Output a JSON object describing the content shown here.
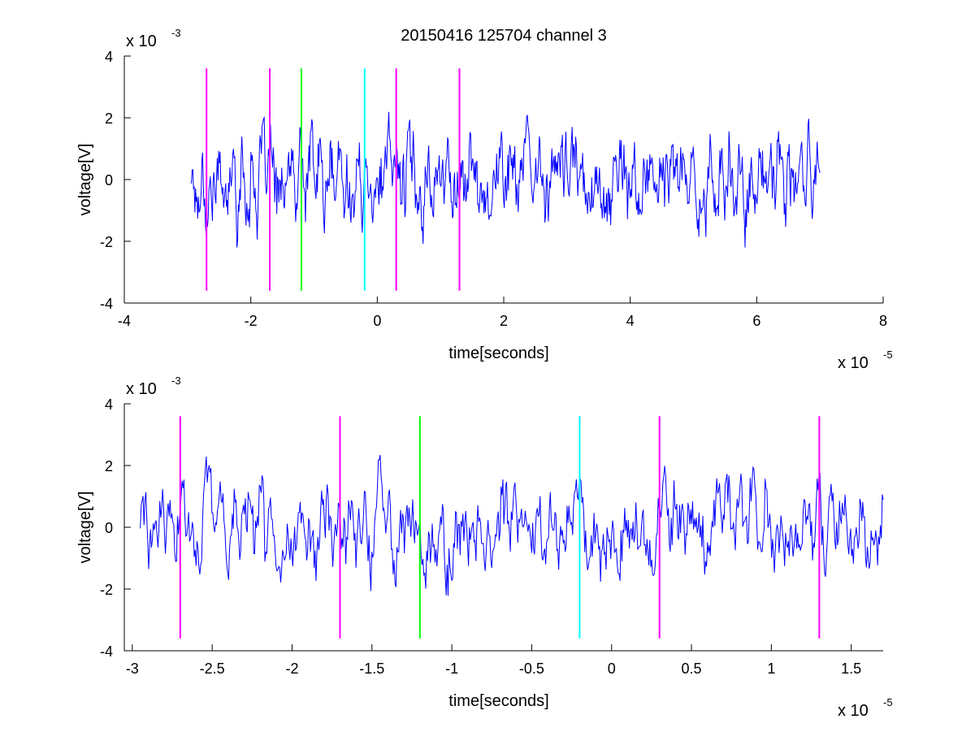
{
  "figure": {
    "title": "20150416 125704 channel 3",
    "background": "#ffffff"
  },
  "chart_data": [
    {
      "type": "line",
      "title": "20150416 125704 channel 3",
      "xlabel": "time[seconds]",
      "ylabel": "voltage[V]",
      "x_multiplier_label": "x 10",
      "x_multiplier_exp": "-5",
      "y_multiplier_label": "x 10",
      "y_multiplier_exp": "-3",
      "xlim": [
        -4,
        8
      ],
      "ylim": [
        -4,
        4
      ],
      "xticks": [
        -4,
        -2,
        0,
        2,
        4,
        6,
        8
      ],
      "xtick_labels": [
        "-4",
        "-2",
        "0",
        "2",
        "4",
        "6",
        "8"
      ],
      "yticks": [
        -4,
        -2,
        0,
        2,
        4
      ],
      "ytick_labels": [
        "-4",
        "-2",
        "0",
        "2",
        "4"
      ],
      "grid": false,
      "series_color": "#0000ff",
      "signal_range": [
        -2.95,
        7.0
      ],
      "markers": [
        {
          "x": -2.7,
          "color": "#ff00ff"
        },
        {
          "x": -1.7,
          "color": "#ff00ff"
        },
        {
          "x": -1.2,
          "color": "#00ff00"
        },
        {
          "x": -0.2,
          "color": "#00ffff"
        },
        {
          "x": 0.3,
          "color": "#ff00ff"
        },
        {
          "x": 1.3,
          "color": "#ff00ff"
        }
      ],
      "marker_yrange": [
        -3.6,
        3.6
      ]
    },
    {
      "type": "line",
      "xlabel": "time[seconds]",
      "ylabel": "voltage[V]",
      "x_multiplier_label": "x 10",
      "x_multiplier_exp": "-5",
      "y_multiplier_label": "x 10",
      "y_multiplier_exp": "-3",
      "xlim": [
        -3.05,
        1.7
      ],
      "ylim": [
        -4,
        4
      ],
      "xticks": [
        -3,
        -2.5,
        -2,
        -1.5,
        -1,
        -0.5,
        0,
        0.5,
        1,
        1.5
      ],
      "xtick_labels": [
        "-3",
        "-2.5",
        "-2",
        "-1.5",
        "-1",
        "-0.5",
        "0",
        "0.5",
        "1",
        "1.5"
      ],
      "yticks": [
        -4,
        -2,
        0,
        2,
        4
      ],
      "ytick_labels": [
        "-4",
        "-2",
        "0",
        "2",
        "4"
      ],
      "grid": false,
      "series_color": "#0000ff",
      "signal_range": [
        -2.95,
        1.7
      ],
      "markers": [
        {
          "x": -2.7,
          "color": "#ff00ff"
        },
        {
          "x": -1.7,
          "color": "#ff00ff"
        },
        {
          "x": -1.2,
          "color": "#00ff00"
        },
        {
          "x": -0.2,
          "color": "#00ffff"
        },
        {
          "x": 0.3,
          "color": "#ff00ff"
        },
        {
          "x": 1.3,
          "color": "#ff00ff"
        }
      ],
      "marker_yrange": [
        -3.6,
        3.6
      ]
    }
  ]
}
